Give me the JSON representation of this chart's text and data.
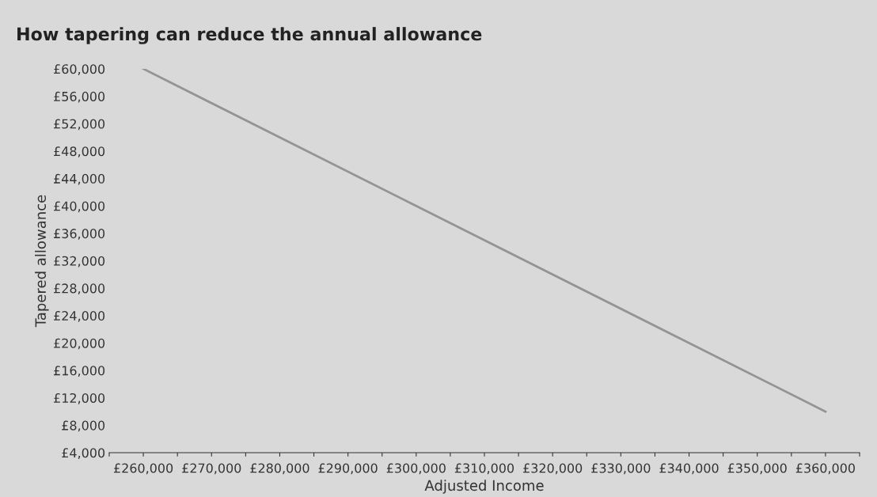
{
  "chart_data": {
    "type": "line",
    "title": "How tapering can reduce the annual allowance",
    "xlabel": "Adjusted Income",
    "ylabel": "Tapered allowance",
    "x": [
      260000,
      360000
    ],
    "series": [
      {
        "color": "#949494",
        "values": [
          60000,
          10000
        ]
      }
    ],
    "xlim": [
      255000,
      365000
    ],
    "xticks": [
      {
        "value": 255000,
        "label": null
      },
      {
        "value": 260000,
        "label": "£260,000"
      },
      {
        "value": 265000,
        "label": null
      },
      {
        "value": 270000,
        "label": "£270,000"
      },
      {
        "value": 275000,
        "label": null
      },
      {
        "value": 280000,
        "label": "£280,000"
      },
      {
        "value": 285000,
        "label": null
      },
      {
        "value": 290000,
        "label": "£290,000"
      },
      {
        "value": 295000,
        "label": null
      },
      {
        "value": 300000,
        "label": "£300,000"
      },
      {
        "value": 305000,
        "label": null
      },
      {
        "value": 310000,
        "label": "£310,000"
      },
      {
        "value": 315000,
        "label": null
      },
      {
        "value": 320000,
        "label": "£320,000"
      },
      {
        "value": 325000,
        "label": null
      },
      {
        "value": 330000,
        "label": "£330,000"
      },
      {
        "value": 335000,
        "label": null
      },
      {
        "value": 340000,
        "label": "£340,000"
      },
      {
        "value": 345000,
        "label": null
      },
      {
        "value": 350000,
        "label": "£350,000"
      },
      {
        "value": 355000,
        "label": null
      },
      {
        "value": 360000,
        "label": "£360,000"
      },
      {
        "value": 365000,
        "label": null
      }
    ],
    "ylim": [
      4000,
      60000
    ],
    "yticks": [
      {
        "value": 4000,
        "label": "£4,000"
      },
      {
        "value": 8000,
        "label": "£8,000"
      },
      {
        "value": 12000,
        "label": "£12,000"
      },
      {
        "value": 16000,
        "label": "£16,000"
      },
      {
        "value": 20000,
        "label": "£20,000"
      },
      {
        "value": 24000,
        "label": "£24,000"
      },
      {
        "value": 28000,
        "label": "£28,000"
      },
      {
        "value": 32000,
        "label": "£32,000"
      },
      {
        "value": 36000,
        "label": "£36,000"
      },
      {
        "value": 40000,
        "label": "£40,000"
      },
      {
        "value": 44000,
        "label": "£44,000"
      },
      {
        "value": 48000,
        "label": "£48,000"
      },
      {
        "value": 52000,
        "label": "£52,000"
      },
      {
        "value": 56000,
        "label": "£56,000"
      },
      {
        "value": 60000,
        "label": "£60,000"
      }
    ],
    "grid": false,
    "legend": false,
    "marker": "none",
    "line_style": "solid"
  }
}
